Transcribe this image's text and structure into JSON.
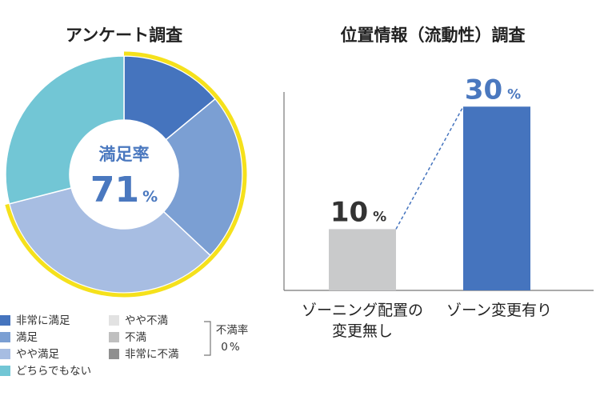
{
  "colors": {
    "very_satisfied": "#4574be",
    "satisfied": "#7b9fd3",
    "somewhat_satisfied": "#a7bde2",
    "neutral": "#72c6d5",
    "somewhat_dissatisfied": "#e2e2e2",
    "dissatisfied": "#bfbfbf",
    "very_dissatisfied": "#8f8f8f",
    "highlight_ring": "#f5e11c",
    "bar_gray": "#c9cacb",
    "bar_blue": "#4574be",
    "connector": "#4574be"
  },
  "chart_data": [
    {
      "type": "pie",
      "title": "アンケート調査",
      "center_label": "満足率",
      "center_value": "71",
      "center_unit": "%",
      "slices": [
        {
          "label": "非常に満足",
          "value": 14,
          "color_key": "very_satisfied"
        },
        {
          "label": "満足",
          "value": 23,
          "color_key": "satisfied"
        },
        {
          "label": "やや満足",
          "value": 34,
          "color_key": "somewhat_satisfied"
        },
        {
          "label": "どちらでもない",
          "value": 29,
          "color_key": "neutral"
        }
      ],
      "highlighted_total": 71,
      "legend_left": [
        {
          "label": "非常に満足",
          "color_key": "very_satisfied"
        },
        {
          "label": "満足",
          "color_key": "satisfied"
        },
        {
          "label": "やや満足",
          "color_key": "somewhat_satisfied"
        },
        {
          "label": "どちらでもない",
          "color_key": "neutral"
        }
      ],
      "legend_right": [
        {
          "label": "やや不満",
          "color_key": "somewhat_dissatisfied"
        },
        {
          "label": "不満",
          "color_key": "dissatisfied"
        },
        {
          "label": "非常に不満",
          "color_key": "very_dissatisfied"
        }
      ],
      "dissatisfaction": {
        "label": "不満率",
        "value": "0",
        "unit": "%"
      }
    },
    {
      "type": "bar",
      "title": "位置情報（流動性）調査",
      "categories": [
        {
          "line1": "ゾーニング配置の",
          "line2": "変更無し"
        },
        {
          "line1": "ゾーン変更有り",
          "line2": ""
        }
      ],
      "values": [
        10,
        30
      ],
      "unit": "%",
      "ylim": [
        0,
        35
      ],
      "bar_color_keys": [
        "bar_gray",
        "bar_blue"
      ]
    }
  ]
}
